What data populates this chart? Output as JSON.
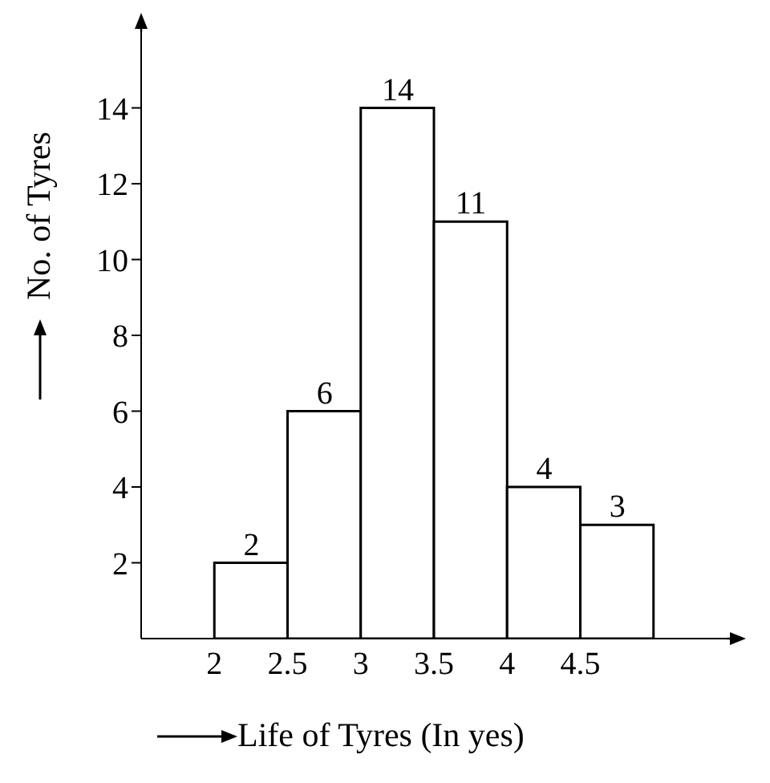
{
  "chart_data": {
    "type": "histogram",
    "xlabel": "Life of Tyres (In yes)",
    "ylabel": "No. of Tyres",
    "bins": [
      2,
      2.5,
      3,
      3.5,
      4,
      4.5,
      5
    ],
    "values": [
      2,
      6,
      14,
      11,
      4,
      3
    ],
    "color": "#ffffff",
    "xlim": [
      1.5,
      5.5
    ],
    "xticks": [
      2,
      2.5,
      3,
      3.5,
      4,
      4.5
    ],
    "ylim": [
      0,
      16
    ],
    "yticks": [
      2,
      4,
      6,
      8,
      10,
      12,
      14
    ],
    "data_labels": true
  }
}
